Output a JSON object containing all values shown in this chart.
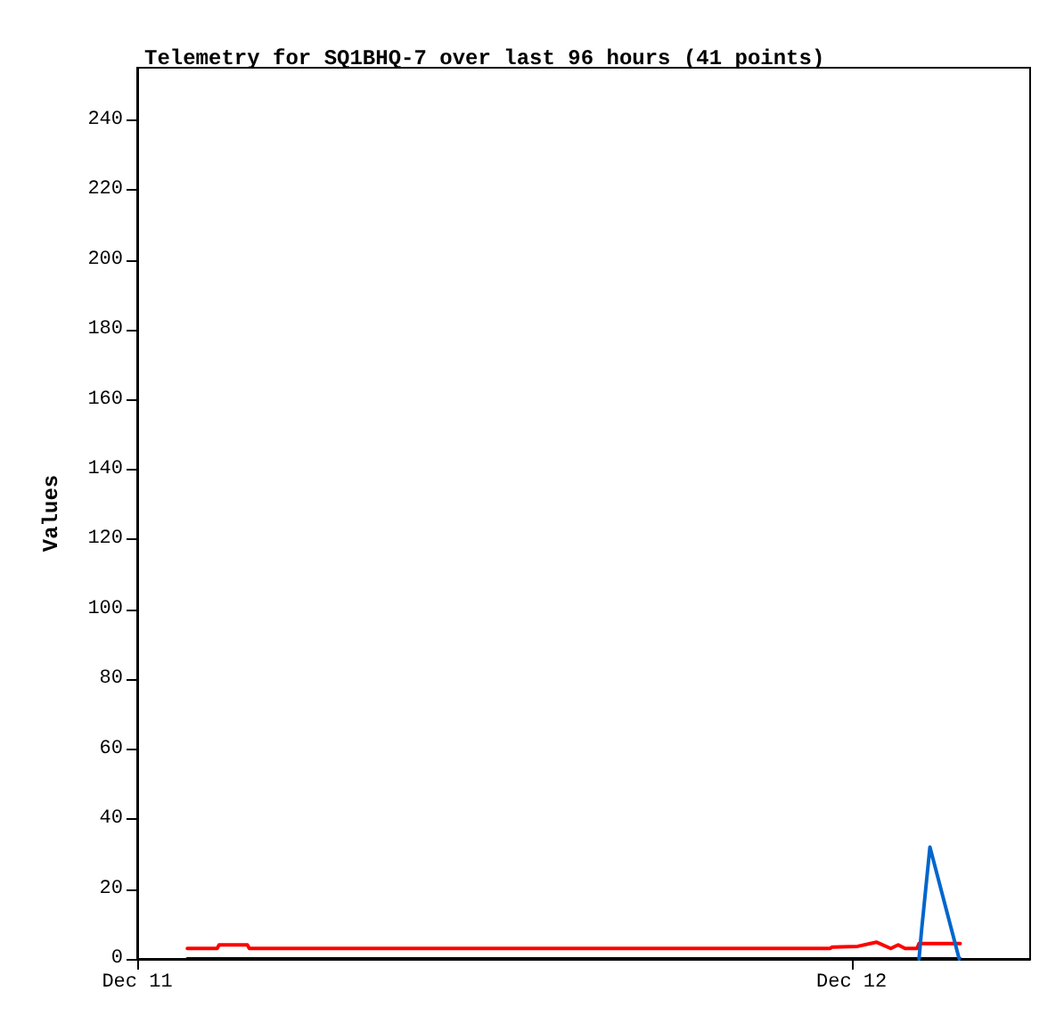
{
  "chart_data": {
    "type": "line",
    "title": "Telemetry for SQ1BHQ-7 over last 96 hours (41 points)",
    "ylabel": "Values",
    "xlim": [
      "--12-11",
      "--12-12T06:00"
    ],
    "xticks": [
      {
        "value": "--12-11",
        "label": "Dec 11"
      },
      {
        "value": "--12-12",
        "label": "Dec 12"
      }
    ],
    "ylim": [
      0,
      255
    ],
    "yticks": [
      0,
      20,
      40,
      60,
      80,
      100,
      120,
      140,
      160,
      180,
      200,
      220,
      240
    ],
    "grid": false,
    "marker": "none",
    "line_style": "solid",
    "series": [
      {
        "color": "#000000",
        "x": [
          "--12-11T01:41",
          "--12-12T03:39"
        ],
        "values": [
          0,
          0
        ]
      },
      {
        "color": "#ff0000",
        "x": [
          "--12-11T01:41",
          "--12-11T02:41",
          "--12-11T02:45",
          "--12-11T03:42",
          "--12-11T03:46",
          "--12-11T23:17",
          "--12-11T23:21",
          "--12-12T00:12",
          "--12-12T00:50",
          "--12-12T01:19",
          "--12-12T01:34",
          "--12-12T01:48",
          "--12-12T02:12",
          "--12-12T02:16",
          "--12-12T03:39"
        ],
        "values": [
          3,
          3,
          4,
          4,
          3,
          3,
          3.4,
          3.6,
          4.8,
          3,
          4,
          3,
          3,
          4.4,
          4.4
        ]
      },
      {
        "color": "#0066cc",
        "x": [
          "--12-12T02:16",
          "--12-12T02:21",
          "--12-12T02:38",
          "--12-12T03:37"
        ],
        "values": [
          0,
          8,
          32,
          0
        ]
      }
    ]
  }
}
